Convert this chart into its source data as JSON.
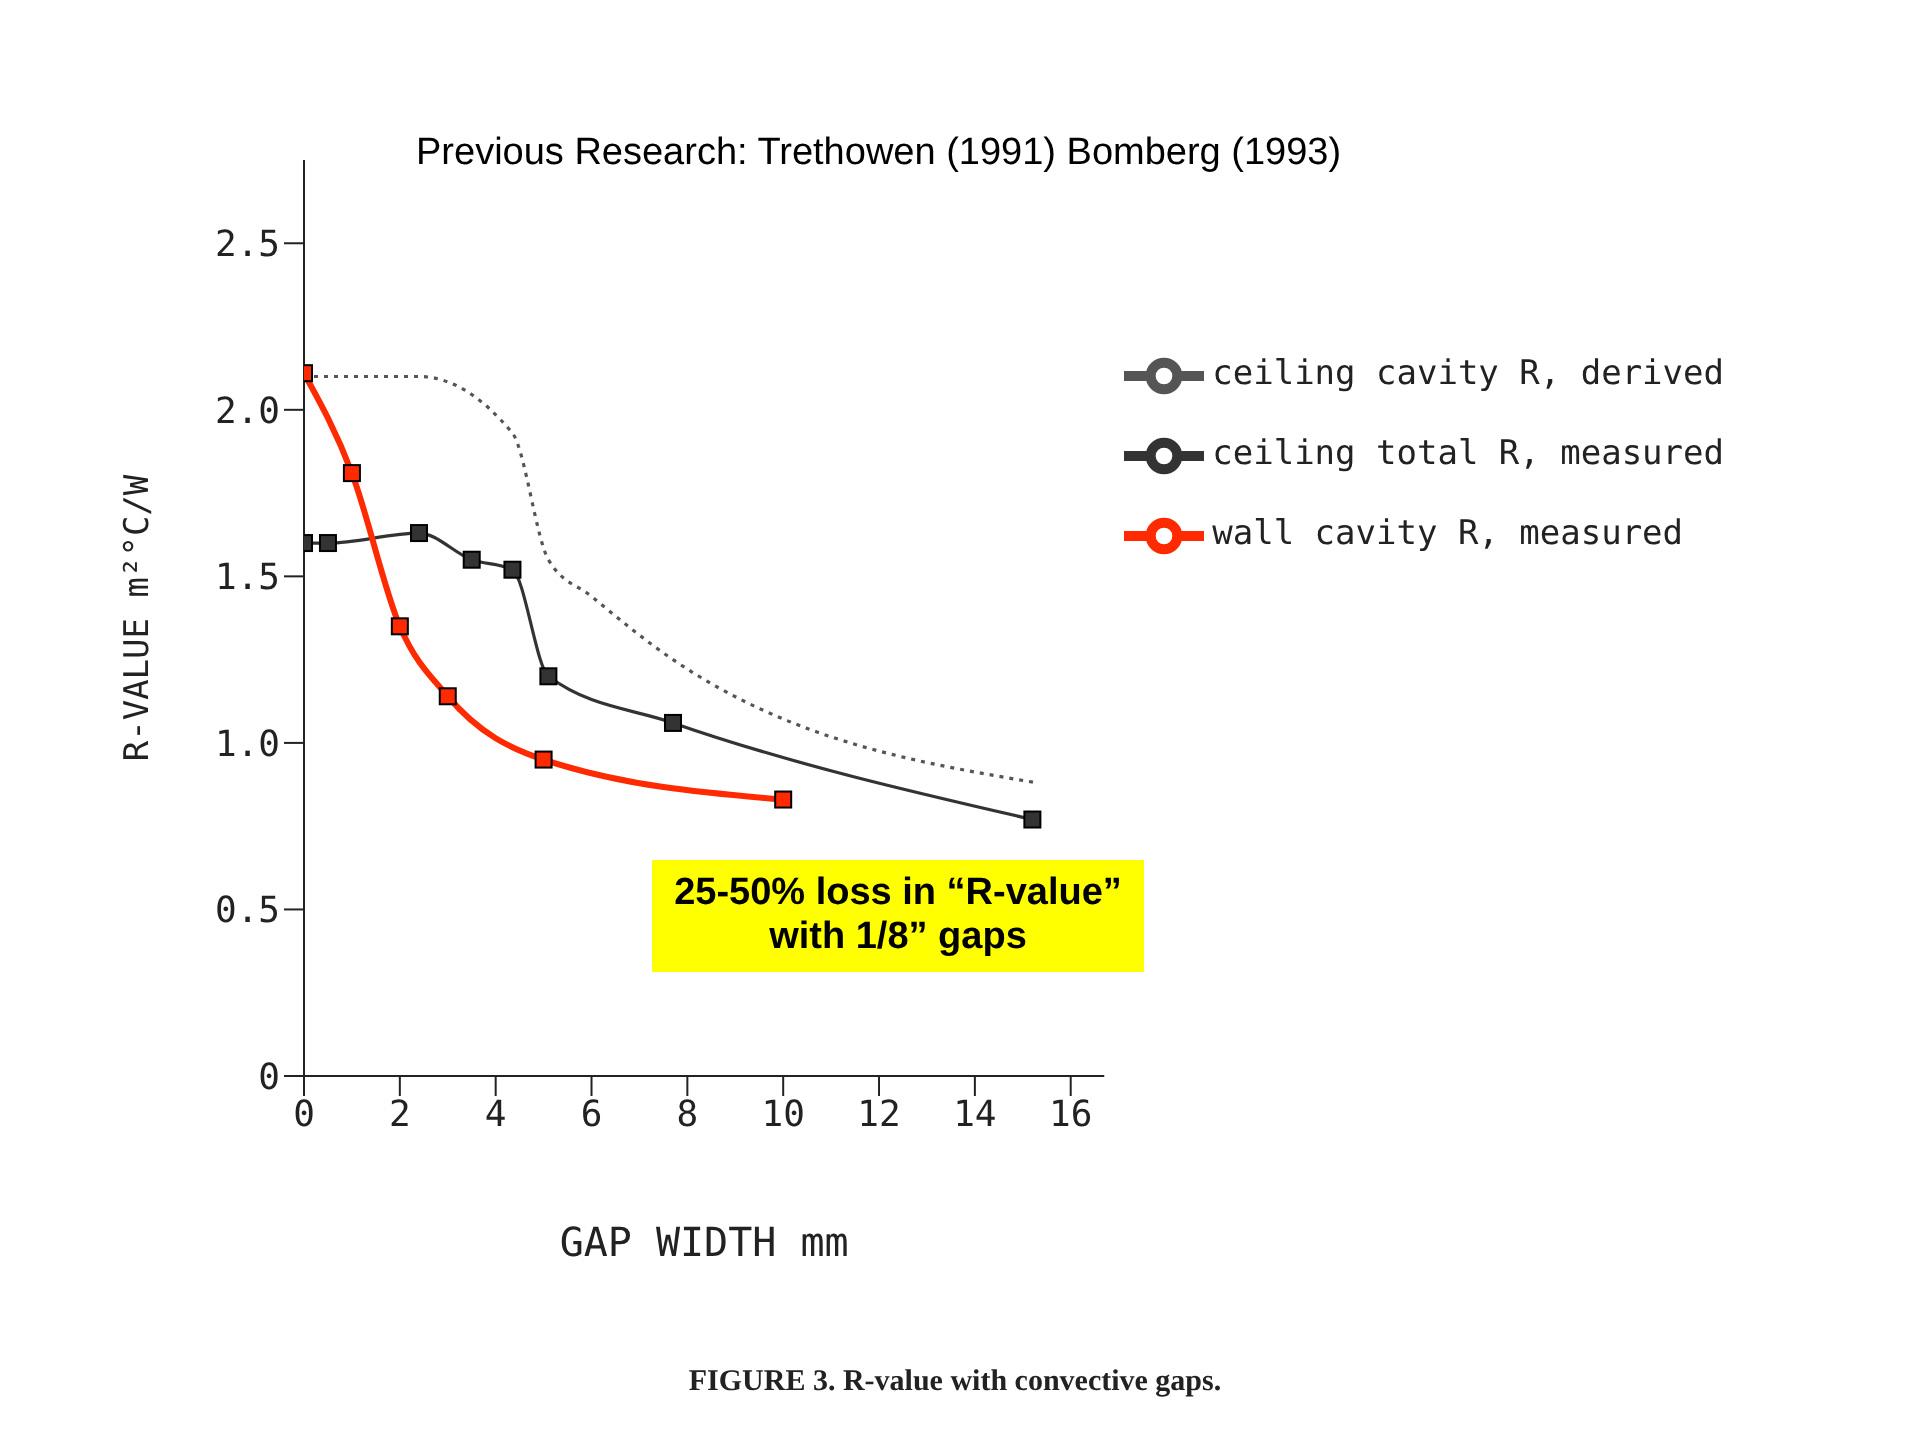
{
  "chart_data": {
    "type": "line",
    "title": "Previous Research: Trethowen (1991) Bomberg (1993)",
    "xlabel": "GAP WIDTH mm",
    "ylabel": "R-VALUE m²°C/W",
    "annotations": [
      "25-50% loss in “R-value” with 1/8” gaps",
      "FIGURE 3. R-value with convective gaps."
    ],
    "xlim": [
      0,
      16.7
    ],
    "xticks": [
      0,
      2,
      4,
      6,
      8,
      10,
      12,
      14,
      16
    ],
    "ylim": [
      0,
      2.75
    ],
    "yticks": [
      0,
      0.5,
      {
        "value": 1,
        "label": "1.0"
      },
      1.5,
      {
        "value": 2,
        "label": "2.0"
      },
      2.5
    ],
    "grid": false,
    "legend": "top right",
    "series": [
      {
        "name": "ceiling total R, measured",
        "color": "#333333",
        "marker": "square",
        "line_style": "solid",
        "x": [
          0,
          0.5,
          2.4,
          3.5,
          4.35,
          5.1,
          7.7,
          15.2
        ],
        "values": [
          1.6,
          1.6,
          1.63,
          1.55,
          1.52,
          1.2,
          1.06,
          0.77
        ]
      },
      {
        "name": "wall cavity R, measured",
        "color": "#ff2a00",
        "marker": "square",
        "line_style": "solid",
        "x": [
          0,
          1,
          2,
          3,
          5,
          10
        ],
        "values": [
          2.11,
          1.81,
          1.35,
          1.14,
          0.95,
          0.83
        ]
      },
      {
        "name": "ceiling cavity R, derived",
        "color": "#555555",
        "marker": "none",
        "line_style": "dotted",
        "x": [
          0,
          2.4,
          4.35,
          5.1,
          6,
          7.7,
          15.3
        ],
        "values": [
          2.1,
          2.1,
          1.93,
          1.55,
          1.44,
          1.25,
          0.88
        ]
      }
    ]
  }
}
